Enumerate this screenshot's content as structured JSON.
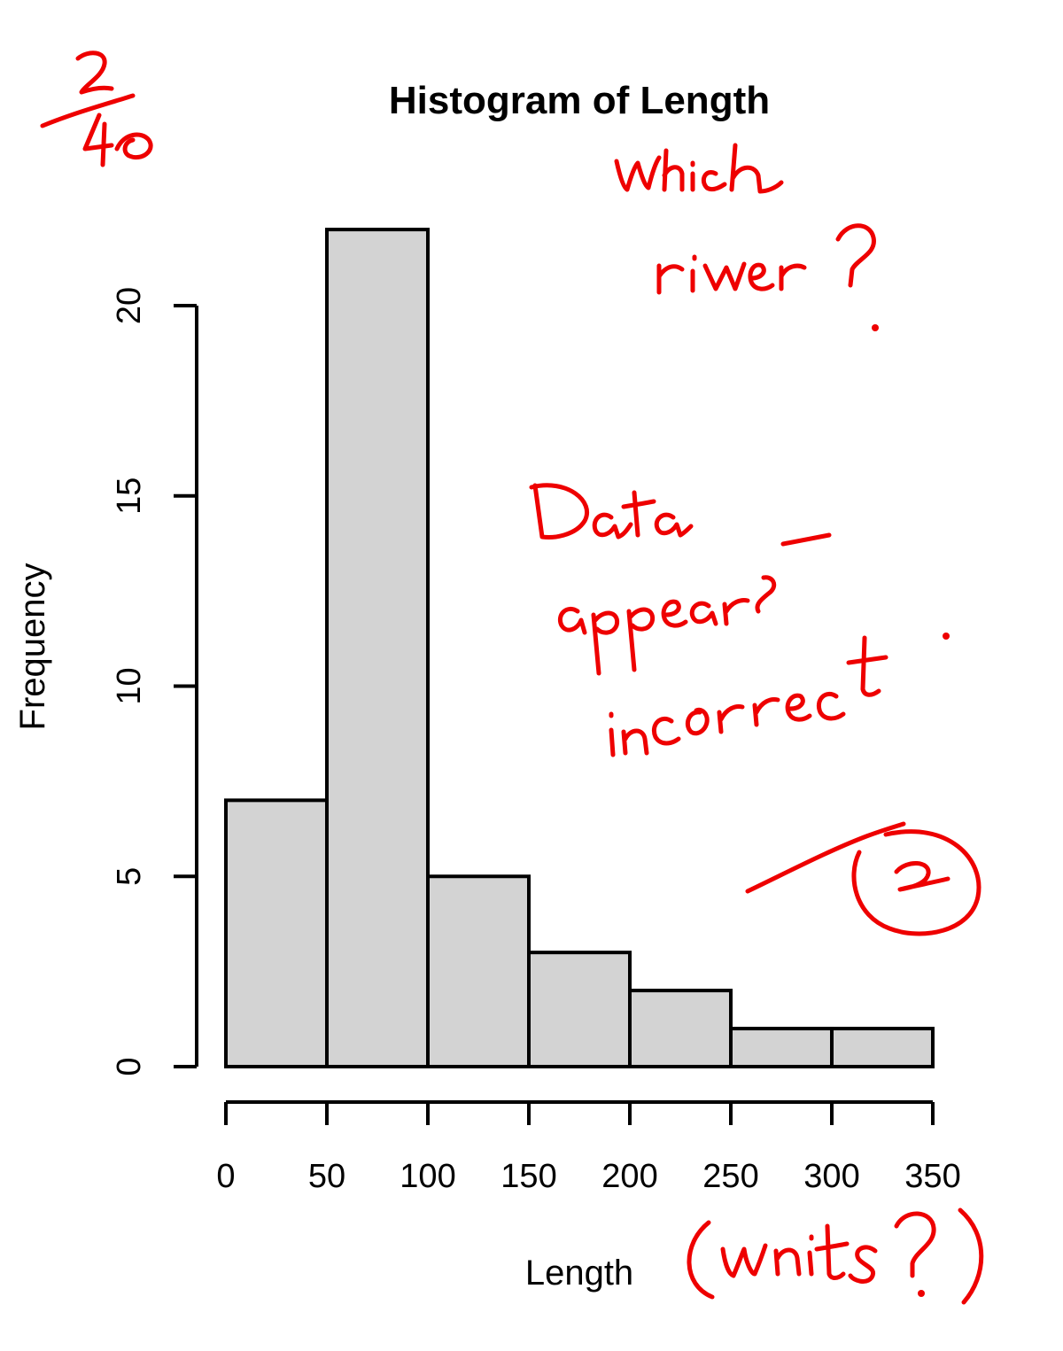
{
  "chart_data": {
    "type": "bar",
    "title": "Histogram of Length",
    "xlabel": "Length",
    "ylabel": "Frequency",
    "bins": [
      {
        "from": 0,
        "to": 50,
        "count": 7
      },
      {
        "from": 50,
        "to": 100,
        "count": 22
      },
      {
        "from": 100,
        "to": 150,
        "count": 5
      },
      {
        "from": 150,
        "to": 200,
        "count": 3
      },
      {
        "from": 200,
        "to": 250,
        "count": 2
      },
      {
        "from": 250,
        "to": 300,
        "count": 1
      },
      {
        "from": 300,
        "to": 350,
        "count": 1
      }
    ],
    "xlim": [
      0,
      350
    ],
    "ylim": [
      0,
      20
    ],
    "xticks": [
      0,
      50,
      100,
      150,
      200,
      250,
      300,
      350
    ],
    "yticks": [
      0,
      5,
      10,
      15,
      20
    ],
    "grid": false,
    "bar_color": "#d3d3d3",
    "edge_color": "#000000"
  },
  "annotations": {
    "color": "#ee0000",
    "score": "2/40",
    "question_river": "which river?",
    "comment_data": "Data appears incorrect.",
    "circled_mark": "2",
    "question_units": "(units?)"
  }
}
